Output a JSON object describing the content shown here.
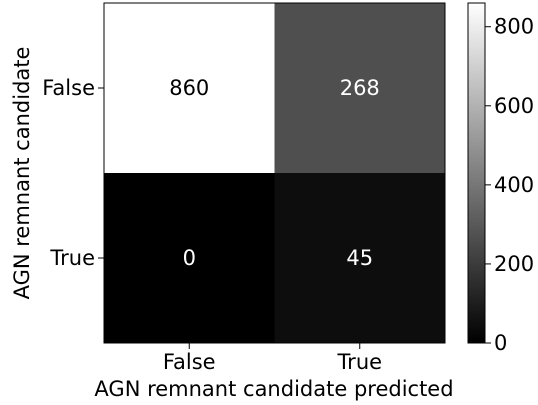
{
  "chart_data": {
    "type": "heatmap",
    "title": "",
    "xlabel": "AGN remnant candidate predicted",
    "ylabel": "AGN remnant candidate",
    "x_categories": [
      "False",
      "True"
    ],
    "y_categories": [
      "False",
      "True"
    ],
    "values": [
      [
        860,
        268
      ],
      [
        0,
        45
      ]
    ],
    "colormap": "gray",
    "colorbar": {
      "range": [
        0,
        860
      ],
      "ticks": [
        0,
        200,
        400,
        600,
        800
      ],
      "tick_labels": [
        "0",
        "200",
        "400",
        "600",
        "800"
      ]
    },
    "text_colors": {
      "on_light": "#000000",
      "on_dark": "#ffffff"
    }
  }
}
